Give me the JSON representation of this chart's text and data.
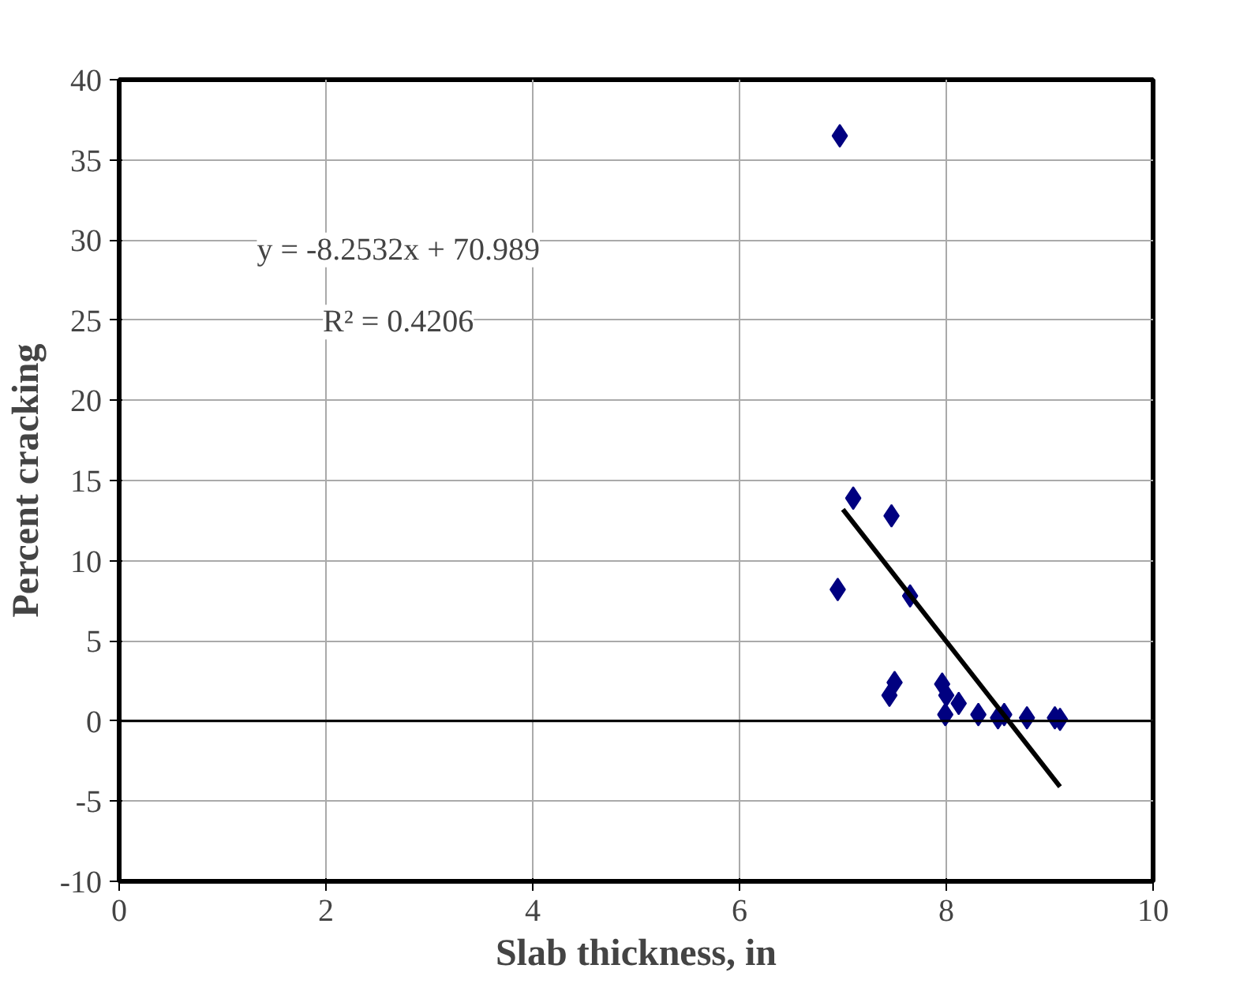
{
  "chart_data": {
    "type": "scatter",
    "xlabel": "Slab thickness, in",
    "ylabel": "Percent cracking",
    "xlim": [
      0,
      10
    ],
    "xticks": [
      0,
      2,
      4,
      6,
      8,
      10
    ],
    "ylim": [
      -10,
      40
    ],
    "yticks": [
      -10,
      -5,
      0,
      5,
      10,
      15,
      20,
      25,
      30,
      35,
      40
    ],
    "grid": true,
    "series": [
      {
        "color": "#000080",
        "marker": "diamond",
        "x": [
          6.95,
          6.97,
          7.1,
          7.47,
          7.65,
          7.45,
          7.5,
          7.96,
          8.0,
          8.12,
          7.99,
          8.31,
          8.5,
          8.56,
          8.78,
          9.05,
          9.1
        ],
        "values": [
          8.2,
          36.5,
          13.9,
          12.8,
          7.8,
          1.6,
          2.4,
          2.3,
          1.6,
          1.1,
          0.4,
          0.4,
          0.2,
          0.4,
          0.2,
          0.2,
          0.1
        ]
      },
      {
        "type": "line",
        "color": "#000000",
        "marker": "none",
        "x": [
          7.0,
          9.1
        ],
        "values": [
          13.2,
          -4.1
        ]
      }
    ],
    "ref_lines": [
      {
        "axis": "y",
        "value": 0,
        "color": "#000000"
      }
    ],
    "annotations": [
      "y = -8.2532x + 70.989",
      "R² = 0.4206"
    ]
  }
}
